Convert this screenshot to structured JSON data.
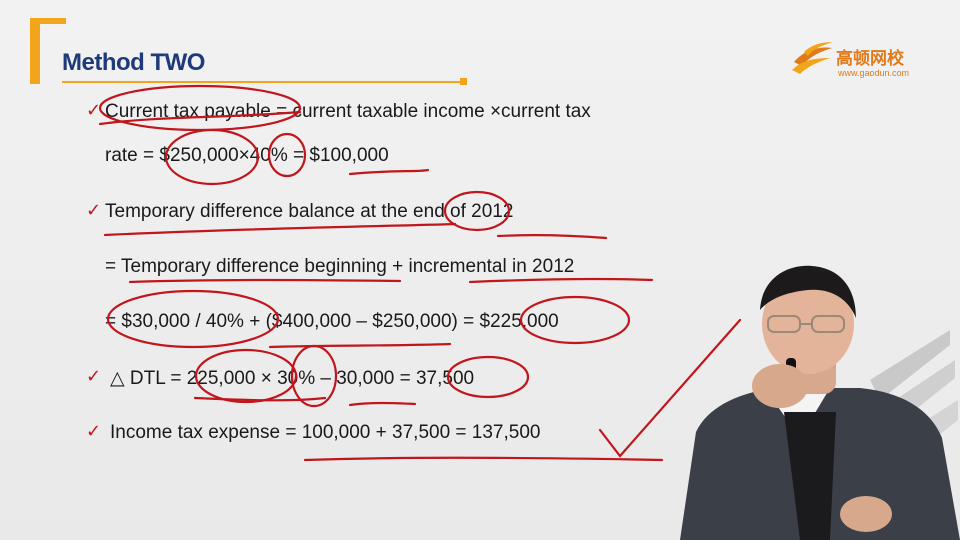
{
  "slide": {
    "title": "Method TWO",
    "logo": {
      "name": "高顿网校",
      "url": "www.gaodun.com"
    },
    "lines": [
      "Current tax payable = current taxable income ×current tax",
      "rate = $250,000×40% = $100,000",
      "Temporary difference balance at the end of 2012",
      "= Temporary difference beginning + incremental in 2012",
      "= $30,000 / 40% + ($400,000 – $250,000) = $225,000",
      "△ DTL = 225,000 × 30% – 30,000 = 37,500",
      "Income tax expense = 100,000 + 37,500 = 137,500"
    ]
  },
  "colors": {
    "accent": "#f2a51a",
    "title": "#1f3a78",
    "ink": "#c0161c",
    "logo": "#e07b1a"
  }
}
